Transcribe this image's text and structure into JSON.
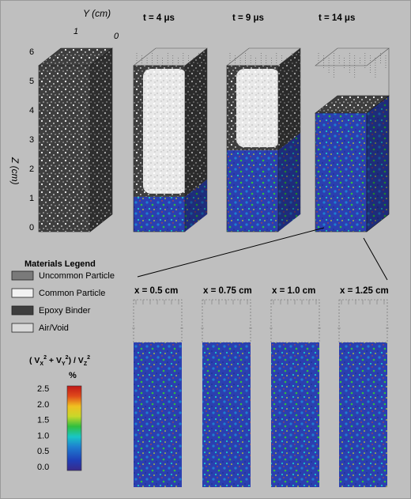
{
  "colors": {
    "background": "#bfbfbf",
    "epoxy_binder": "#3e3e3e",
    "common_particle": "#f2f2f2",
    "uncommon_particle": "#7a7a7a",
    "air_void": "#d9d9d9",
    "colorbar": [
      "#3a2a8a",
      "#1f3fb8",
      "#1e7fd0",
      "#19c6c6",
      "#2fbf3f",
      "#c8d82a",
      "#f0c020",
      "#e04a1a",
      "#c01818"
    ]
  },
  "axes": {
    "y_axis_label": "Y (cm)",
    "y_ticks": [
      "1",
      "0"
    ],
    "z_axis_label": "Z (cm)",
    "z_ticks": [
      "6",
      "5",
      "4",
      "3",
      "2",
      "1",
      "0"
    ]
  },
  "time_panels": [
    {
      "label": "",
      "fill_fraction": 0
    },
    {
      "label": "t = 4 μs",
      "fill_fraction": 0.21
    },
    {
      "label": "t = 9 μs",
      "fill_fraction": 0.49
    },
    {
      "label": "t = 14 μs",
      "fill_fraction": 1.0
    }
  ],
  "legend": {
    "title": "Materials Legend",
    "items": [
      {
        "label": "Uncommon Particle",
        "color": "#7a7a7a"
      },
      {
        "label": "Common Particle",
        "color": "#f2f2f2"
      },
      {
        "label": "Epoxy Binder",
        "color": "#3e3e3e"
      },
      {
        "label": "Air/Void",
        "color": "#d9d9d9"
      }
    ]
  },
  "colorbar": {
    "title_prefix": "( V",
    "title_x": "X",
    "title_plus": " + V",
    "title_y": "Y",
    "title_over": ") / V",
    "title_z": "Z",
    "sq": "2",
    "unit": "%",
    "ticks": [
      "2.5",
      "2.0",
      "1.5",
      "1.0",
      "0.5",
      "0.0"
    ]
  },
  "slices": [
    {
      "label": "x = 0.5 cm"
    },
    {
      "label": "x = 0.75 cm"
    },
    {
      "label": "x = 1.0 cm"
    },
    {
      "label": "x = 1.25 cm"
    }
  ]
}
